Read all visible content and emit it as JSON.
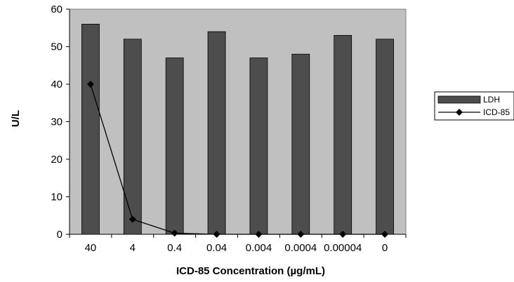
{
  "chart_data": {
    "type": "bar",
    "title": "",
    "xlabel": "ICD-85 Concentration (µg/mL)",
    "ylabel": "U/L",
    "categories": [
      "40",
      "4",
      "0.4",
      "0.04",
      "0.004",
      "0.0004",
      "0.00004",
      "0"
    ],
    "ylim": [
      0,
      60
    ],
    "yticks": [
      "0",
      "10",
      "20",
      "30",
      "40",
      "50",
      "60"
    ],
    "grid": false,
    "legend_position": "right",
    "series": [
      {
        "name": "LDH",
        "type": "bar",
        "color": "#4d4d4d",
        "values": [
          56,
          52,
          47,
          54,
          47,
          48,
          53,
          52
        ]
      },
      {
        "name": "ICD-85",
        "type": "line",
        "color": "#000000",
        "marker": "diamond",
        "values": [
          40,
          4,
          0.3,
          0,
          0,
          0,
          0,
          0
        ]
      }
    ],
    "plot_background": "#c0c0c0"
  }
}
